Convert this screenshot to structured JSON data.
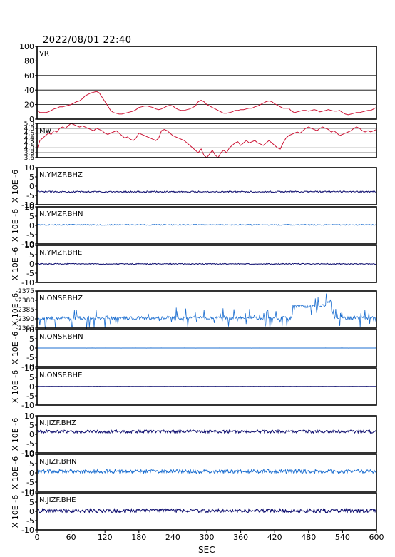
{
  "header": {
    "title": "2022/08/01 22:40"
  },
  "colors": {
    "frame": "#000000",
    "vr": "#cc1133",
    "mw": "#cc1133",
    "dark": "#101070",
    "blue": "#1d6fd0",
    "grid": "#000000"
  },
  "chart_data": [
    {
      "type": "line",
      "label": "VR",
      "ylim": [
        0,
        100
      ],
      "grid": true,
      "y_ticks": [
        "100",
        "80",
        "60",
        "40",
        "20",
        "0"
      ],
      "x": [
        0,
        5,
        10,
        15,
        20,
        25,
        30,
        35,
        40,
        45,
        50,
        55,
        60,
        65,
        70,
        75,
        80,
        85,
        90,
        95,
        100,
        105,
        110,
        115,
        120,
        125,
        130,
        135,
        140,
        145,
        150,
        155,
        160,
        165,
        170,
        175,
        180,
        185,
        190,
        195,
        200,
        205,
        210,
        215,
        220,
        225,
        230,
        235,
        240,
        245,
        250,
        255,
        260,
        265,
        270,
        275,
        280,
        285,
        290,
        295,
        300,
        305,
        310,
        315,
        320,
        325,
        330,
        335,
        340,
        345,
        350,
        355,
        360,
        365,
        370,
        375,
        380,
        385,
        390,
        395,
        400,
        405,
        410,
        415,
        420,
        425,
        430,
        435,
        440,
        445,
        450,
        455,
        460,
        465,
        470,
        475,
        480,
        485,
        490,
        495,
        500,
        505,
        510,
        515,
        520,
        525,
        530,
        535,
        540,
        545,
        550,
        555,
        560,
        565,
        570,
        575,
        580,
        585,
        590,
        595,
        600
      ],
      "values": [
        12,
        9,
        9,
        9,
        10,
        12,
        14,
        15,
        17,
        17,
        18,
        19,
        20,
        22,
        24,
        25,
        28,
        32,
        34,
        36,
        37,
        38,
        36,
        30,
        24,
        18,
        12,
        9,
        8,
        7,
        7,
        8,
        9,
        10,
        11,
        13,
        16,
        17,
        18,
        18,
        17,
        16,
        14,
        13,
        14,
        16,
        18,
        19,
        18,
        15,
        13,
        12,
        12,
        13,
        14,
        16,
        18,
        24,
        26,
        24,
        20,
        18,
        16,
        14,
        12,
        10,
        8,
        8,
        9,
        10,
        12,
        12,
        13,
        13,
        14,
        15,
        15,
        17,
        18,
        20,
        22,
        24,
        25,
        24,
        21,
        19,
        17,
        15,
        15,
        15,
        11,
        9,
        10,
        11,
        12,
        12,
        11,
        12,
        13,
        12,
        10,
        11,
        12,
        13,
        12,
        11,
        11,
        12,
        9,
        7,
        6,
        7,
        8,
        9,
        9,
        10,
        11,
        12,
        12,
        14,
        16
      ]
    },
    {
      "type": "line",
      "label": "Mw",
      "ylim": [
        3.6,
        5.0
      ],
      "grid": true,
      "y_ticks": [
        "5.0",
        "4.8",
        "4.6",
        "4.4",
        "4.2",
        "4.0",
        "3.8",
        "3.6"
      ],
      "x": [
        0,
        5,
        10,
        15,
        20,
        25,
        30,
        35,
        40,
        45,
        50,
        55,
        60,
        65,
        70,
        75,
        80,
        85,
        90,
        95,
        100,
        105,
        110,
        115,
        120,
        125,
        130,
        135,
        140,
        145,
        150,
        155,
        160,
        165,
        170,
        175,
        180,
        185,
        190,
        195,
        200,
        205,
        210,
        215,
        220,
        225,
        230,
        235,
        240,
        245,
        250,
        255,
        260,
        265,
        270,
        275,
        280,
        285,
        290,
        295,
        300,
        305,
        310,
        315,
        320,
        325,
        330,
        335,
        340,
        345,
        350,
        355,
        360,
        365,
        370,
        375,
        380,
        385,
        390,
        395,
        400,
        405,
        410,
        415,
        420,
        425,
        430,
        435,
        440,
        445,
        450,
        455,
        460,
        465,
        470,
        475,
        480,
        485,
        490,
        495,
        500,
        505,
        510,
        515,
        520,
        525,
        530,
        535,
        540,
        545,
        550,
        555,
        560,
        565,
        570,
        575,
        580,
        585,
        590,
        595,
        600
      ],
      "values": [
        3.95,
        4.3,
        4.4,
        4.5,
        4.6,
        4.55,
        4.7,
        4.65,
        4.8,
        4.85,
        4.8,
        4.9,
        5.0,
        4.95,
        4.9,
        4.85,
        4.9,
        4.85,
        4.8,
        4.75,
        4.7,
        4.8,
        4.75,
        4.7,
        4.6,
        4.55,
        4.6,
        4.65,
        4.7,
        4.6,
        4.5,
        4.4,
        4.45,
        4.35,
        4.3,
        4.4,
        4.6,
        4.55,
        4.5,
        4.45,
        4.4,
        4.35,
        4.3,
        4.4,
        4.7,
        4.75,
        4.7,
        4.6,
        4.5,
        4.45,
        4.4,
        4.35,
        4.3,
        4.2,
        4.1,
        4.0,
        3.9,
        3.8,
        3.95,
        3.7,
        3.6,
        3.75,
        3.9,
        3.7,
        3.6,
        3.8,
        3.9,
        3.8,
        4.0,
        4.1,
        4.2,
        4.25,
        4.1,
        4.2,
        4.3,
        4.2,
        4.25,
        4.3,
        4.2,
        4.15,
        4.1,
        4.2,
        4.3,
        4.2,
        4.1,
        4.0,
        3.95,
        4.2,
        4.4,
        4.5,
        4.55,
        4.6,
        4.65,
        4.6,
        4.7,
        4.8,
        4.85,
        4.8,
        4.75,
        4.7,
        4.8,
        4.85,
        4.8,
        4.75,
        4.65,
        4.7,
        4.6,
        4.5,
        4.55,
        4.6,
        4.65,
        4.7,
        4.8,
        4.85,
        4.8,
        4.7,
        4.65,
        4.7,
        4.65,
        4.7,
        4.75
      ]
    },
    {
      "type": "line",
      "label": "N.YMZF.BHZ",
      "ylim": [
        -10,
        10
      ],
      "y_ticks": [
        "10",
        "5",
        "0",
        "-5",
        "-10"
      ],
      "ylabel": "X 10E -6",
      "color_key": "dark",
      "baseline": -3.0,
      "noise": 0.35,
      "spikes": false
    },
    {
      "type": "line",
      "label": "N.YMZF.BHN",
      "ylim": [
        -10,
        10
      ],
      "y_ticks": [
        "10",
        "5",
        "0",
        "-5",
        "-10"
      ],
      "ylabel": "X 10E -6",
      "color_key": "blue",
      "baseline": 0.3,
      "noise": 0.25,
      "spikes": false
    },
    {
      "type": "line",
      "label": "N.YMZF.BHE",
      "ylim": [
        -10,
        10
      ],
      "y_ticks": [
        "10",
        "5",
        "0",
        "-5",
        "-10"
      ],
      "ylabel": "X 10E -6",
      "color_key": "dark",
      "baseline": 0.0,
      "noise": 0.25,
      "spikes": false
    },
    {
      "type": "line",
      "label": "N.ONSF.BHZ",
      "ylim": [
        -2396,
        -2374
      ],
      "y_ticks": [
        "-2375",
        "-2380",
        "-2385",
        "-2390",
        "-2395"
      ],
      "ylabel": "X 10E -6",
      "color_key": "blue",
      "baseline": -2390,
      "noise": 1.0,
      "spikes": true
    },
    {
      "type": "line",
      "label": "N.ONSF.BHN",
      "ylim": [
        -10,
        10
      ],
      "y_ticks": [
        "10",
        "5",
        "0",
        "-5",
        "-10"
      ],
      "ylabel": "X 10E -6",
      "color_key": "blue",
      "baseline": 0.0,
      "noise": 0.02,
      "spikes": false
    },
    {
      "type": "line",
      "label": "N.ONSF.BHE",
      "ylim": [
        -10,
        10
      ],
      "y_ticks": [
        "10",
        "5",
        "0",
        "-5",
        "-10"
      ],
      "ylabel": "X 10E -6",
      "color_key": "dark",
      "baseline": 0.1,
      "noise": 0.05,
      "spikes": false
    },
    {
      "type": "line",
      "label": "N.JIZF.BHZ",
      "ylim": [
        -10,
        10
      ],
      "y_ticks": [
        "10",
        "5",
        "0",
        "-5",
        "-10"
      ],
      "ylabel": "X 10E -6",
      "color_key": "dark",
      "baseline": 1.5,
      "noise": 0.8,
      "spikes": false
    },
    {
      "type": "line",
      "label": "N.JIZF.BHN",
      "ylim": [
        -10,
        10
      ],
      "y_ticks": [
        "10",
        "5",
        "0",
        "-5",
        "-10"
      ],
      "ylabel": "X 10E -6",
      "color_key": "blue",
      "baseline": 0.8,
      "noise": 1.0,
      "spikes": false
    },
    {
      "type": "line",
      "label": "N.JIZF.BHE",
      "ylim": [
        -10,
        10
      ],
      "y_ticks": [
        "10",
        "5",
        "0",
        "-5",
        "-10"
      ],
      "ylabel": "X 10E -6",
      "color_key": "dark",
      "baseline": 0.3,
      "noise": 1.0,
      "spikes": false
    }
  ],
  "x_axis": {
    "label": "SEC",
    "range": [
      0,
      600
    ],
    "ticks": [
      "0",
      "60",
      "120",
      "180",
      "240",
      "300",
      "360",
      "420",
      "480",
      "540",
      "600"
    ]
  }
}
